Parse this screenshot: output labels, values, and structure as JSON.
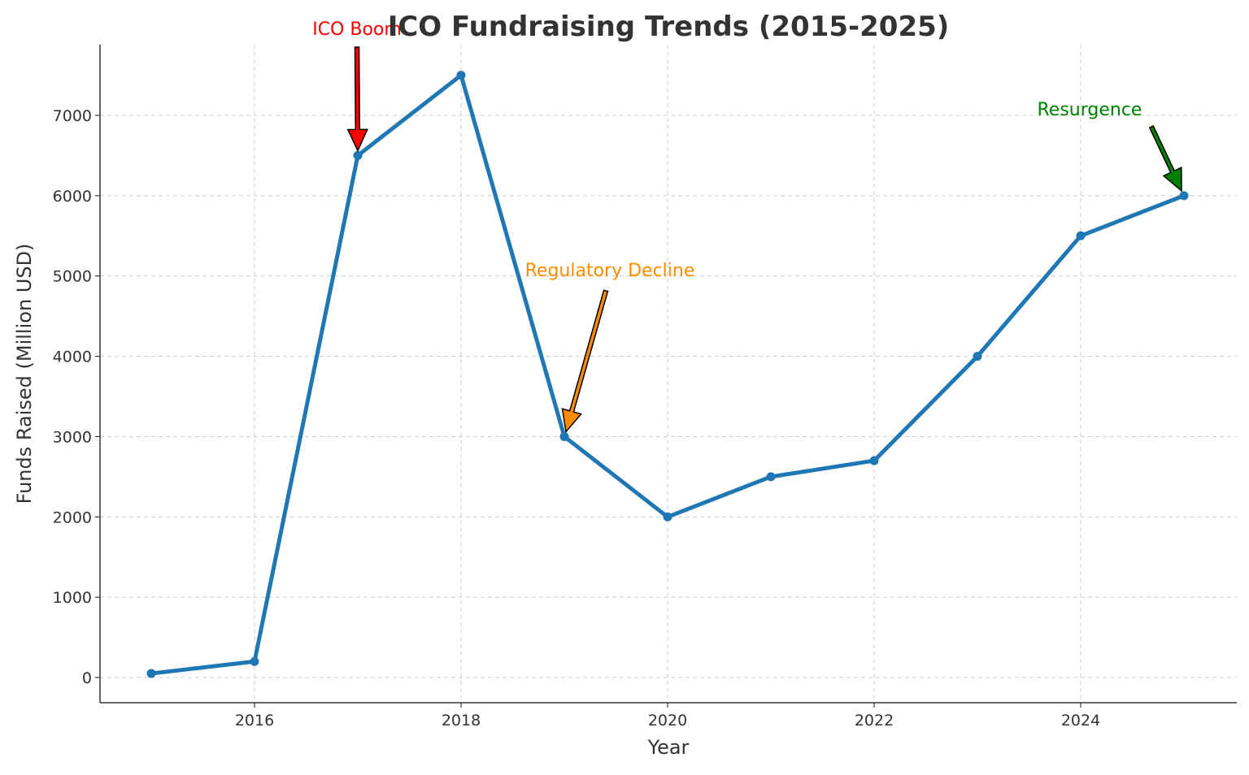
{
  "chart_data": {
    "type": "line",
    "title": "ICO Fundraising Trends (2015-2025)",
    "xlabel": "Year",
    "ylabel": "Funds Raised (Million USD)",
    "x": [
      2015,
      2016,
      2017,
      2018,
      2019,
      2020,
      2021,
      2022,
      2023,
      2024,
      2025
    ],
    "values": [
      50,
      200,
      6500,
      7500,
      3000,
      2000,
      2500,
      2700,
      4000,
      5500,
      6000
    ],
    "xlim": [
      2014.5,
      2025.5
    ],
    "ylim": [
      -320,
      7870
    ],
    "xticks": [
      "2016",
      "2018",
      "2020",
      "2022",
      "2024"
    ],
    "yticks": [
      "0",
      "1000",
      "2000",
      "3000",
      "4000",
      "5000",
      "6000",
      "7000"
    ],
    "grid": true,
    "line_color": "#1f77b4",
    "annotations": [
      {
        "text": "ICO Boom",
        "year": 2017,
        "value": 6500,
        "color": "#ff0000"
      },
      {
        "text": "Regulatory Decline",
        "year": 2019,
        "value": 3000,
        "color": "#ff8c00"
      },
      {
        "text": "Resurgence",
        "year": 2025,
        "value": 6000,
        "color": "#008000"
      }
    ]
  }
}
